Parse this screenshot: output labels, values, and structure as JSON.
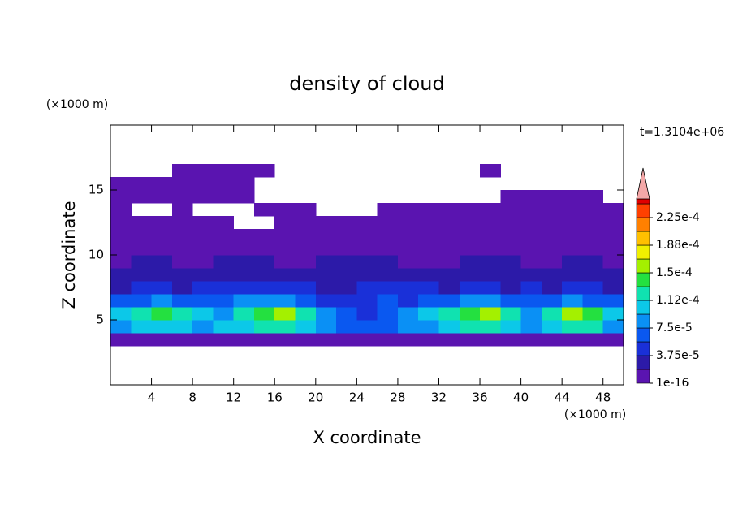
{
  "chart_data": {
    "type": "contour",
    "title": "density of cloud",
    "x_label": "X coordinate",
    "y_label": "Z coordinate",
    "x_unit": "(×1000 m)",
    "y_unit": "(×1000 m)",
    "annotation": "t=1.3104e+06",
    "xlim": [
      0,
      50
    ],
    "ylim": [
      0,
      20
    ],
    "xticks": [
      4,
      8,
      12,
      16,
      20,
      24,
      28,
      32,
      36,
      40,
      44,
      48
    ],
    "yticks": [
      5,
      10,
      15
    ],
    "xbins": [
      0,
      2,
      4,
      6,
      8,
      10,
      12,
      14,
      16,
      18,
      20,
      22,
      24,
      26,
      28,
      30,
      32,
      34,
      36,
      38,
      40,
      42,
      44,
      46,
      48,
      50
    ],
    "zbins": [
      3,
      4,
      5,
      6,
      7,
      8,
      9,
      10,
      11,
      12,
      13,
      14,
      15,
      16,
      17
    ],
    "levels": [
      1e-16,
      1.875e-05,
      3.75e-05,
      5.625e-05,
      7.5e-05,
      9.375e-05,
      0.0001125,
      0.00013125,
      0.00015,
      0.00016875,
      0.0001875,
      0.00020625,
      0.000225,
      0.00024375
    ],
    "colors": [
      "#5a14b0",
      "#2c1aa8",
      "#1a30d8",
      "#0a58f0",
      "#0a90f5",
      "#0cc8e8",
      "#10e2b0",
      "#24e040",
      "#a4f000",
      "#f0f000",
      "#ffc000",
      "#ff8000",
      "#ff4000",
      "#e00000"
    ],
    "extend_color": "#f4a8a8",
    "colorbar_ticks": [
      {
        "value": 1e-16,
        "label": "1e-16"
      },
      {
        "value": 3.75e-05,
        "label": "3.75e-5"
      },
      {
        "value": 7.5e-05,
        "label": "7.5e-5"
      },
      {
        "value": 0.0001125,
        "label": "1.12e-4"
      },
      {
        "value": 0.00015,
        "label": "1.5e-4"
      },
      {
        "value": 0.0001875,
        "label": "1.88e-4"
      },
      {
        "value": 0.000225,
        "label": "2.25e-4"
      }
    ],
    "values": [
      [
        1e-05,
        1e-05,
        1e-05,
        1e-05,
        1e-05,
        1e-05,
        1e-05,
        1e-05,
        1e-05,
        1e-05,
        1e-05,
        1e-05,
        1e-05,
        1e-05,
        1e-05,
        1e-05,
        1e-05,
        1e-05,
        1e-05,
        1e-05,
        1e-05,
        1e-05,
        1e-05,
        1e-05,
        1e-05
      ],
      [
        9e-05,
        0.00011,
        0.00011,
        0.0001,
        9e-05,
        0.0001,
        0.00011,
        0.00012,
        0.00013,
        0.00011,
        9e-05,
        7e-05,
        6e-05,
        7e-05,
        8e-05,
        9e-05,
        0.0001,
        0.00012,
        0.00013,
        0.00011,
        9e-05,
        0.0001,
        0.00012,
        0.00012,
        8e-05
      ],
      [
        0.00011,
        0.00013,
        0.00014,
        0.00012,
        0.0001,
        9e-05,
        0.00012,
        0.00014,
        0.00015,
        0.00013,
        9e-05,
        6e-05,
        5e-05,
        6e-05,
        8e-05,
        0.0001,
        0.00012,
        0.00014,
        0.00015,
        0.00012,
        9e-05,
        0.00012,
        0.00015,
        0.00014,
        0.0001
      ],
      [
        6e-05,
        7e-05,
        8e-05,
        7e-05,
        6e-05,
        7e-05,
        8e-05,
        9e-05,
        9e-05,
        7e-05,
        5e-05,
        4e-05,
        5e-05,
        6e-05,
        5e-05,
        6e-05,
        7e-05,
        8e-05,
        8e-05,
        7e-05,
        6e-05,
        7e-05,
        8e-05,
        7e-05,
        6e-05
      ],
      [
        3e-05,
        4e-05,
        4e-05,
        3e-05,
        4e-05,
        4e-05,
        5e-05,
        4e-05,
        4e-05,
        4e-05,
        3e-05,
        3e-05,
        4e-05,
        5e-05,
        4e-05,
        4e-05,
        3e-05,
        4e-05,
        4e-05,
        3e-05,
        4e-05,
        3e-05,
        4e-05,
        4e-05,
        3e-05
      ],
      [
        2e-05,
        2e-05,
        2e-05,
        2e-05,
        2e-05,
        2e-05,
        2e-05,
        2e-05,
        2e-05,
        2e-05,
        2e-05,
        2e-05,
        2e-05,
        2e-05,
        2e-05,
        2e-05,
        2e-05,
        2e-05,
        2e-05,
        2e-05,
        2e-05,
        2e-05,
        2e-05,
        2e-05,
        2e-05
      ],
      [
        1e-05,
        2e-05,
        2e-05,
        1e-05,
        1e-05,
        2e-05,
        2e-05,
        2e-05,
        1e-05,
        1e-05,
        2e-05,
        2e-05,
        2e-05,
        2e-05,
        1e-05,
        1e-05,
        1e-05,
        2e-05,
        2e-05,
        2e-05,
        1e-05,
        1e-05,
        2e-05,
        2e-05,
        1e-05
      ],
      [
        1e-05,
        1e-05,
        1e-05,
        1e-05,
        1e-05,
        1e-05,
        1e-05,
        1e-05,
        1e-05,
        1e-05,
        1e-05,
        1e-05,
        1e-05,
        1e-05,
        1e-05,
        1e-05,
        1e-05,
        1e-05,
        1e-05,
        1e-05,
        1e-05,
        1e-05,
        1e-05,
        1e-05,
        1e-05
      ],
      [
        1e-05,
        1e-05,
        1e-05,
        1e-05,
        1e-05,
        1e-05,
        1e-05,
        1e-05,
        1e-05,
        1e-05,
        1e-05,
        1e-05,
        1e-05,
        1e-05,
        1e-05,
        1e-05,
        1e-05,
        1e-05,
        1e-05,
        1e-05,
        1e-05,
        1e-05,
        1e-05,
        1e-05,
        1e-05
      ],
      [
        1e-05,
        1e-05,
        1e-05,
        1e-05,
        1e-05,
        1e-05,
        null,
        null,
        1e-05,
        1e-05,
        1e-05,
        1e-05,
        1e-05,
        1e-05,
        1e-05,
        1e-05,
        1e-05,
        1e-05,
        1e-05,
        1e-05,
        1e-05,
        1e-05,
        1e-05,
        1e-05,
        1e-05
      ],
      [
        1e-05,
        null,
        null,
        1e-05,
        null,
        null,
        null,
        1e-05,
        1e-05,
        1e-05,
        null,
        null,
        null,
        1e-05,
        1e-05,
        1e-05,
        1e-05,
        1e-05,
        1e-05,
        1e-05,
        1e-05,
        1e-05,
        1e-05,
        1e-05,
        1e-05
      ],
      [
        1e-05,
        1e-05,
        1e-05,
        1e-05,
        1e-05,
        1e-05,
        1e-05,
        null,
        null,
        null,
        null,
        null,
        null,
        null,
        null,
        null,
        null,
        null,
        null,
        1e-05,
        1e-05,
        1e-05,
        1e-05,
        1e-05,
        null
      ],
      [
        1e-05,
        1e-05,
        1e-05,
        1e-05,
        1e-05,
        1e-05,
        1e-05,
        null,
        null,
        null,
        null,
        null,
        null,
        null,
        null,
        null,
        null,
        null,
        null,
        null,
        null,
        null,
        null,
        null,
        null
      ],
      [
        null,
        null,
        null,
        1e-05,
        1e-05,
        1e-05,
        1e-05,
        1e-05,
        null,
        null,
        null,
        null,
        null,
        null,
        null,
        null,
        null,
        null,
        1e-05,
        null,
        null,
        null,
        null,
        null,
        null
      ]
    ]
  }
}
